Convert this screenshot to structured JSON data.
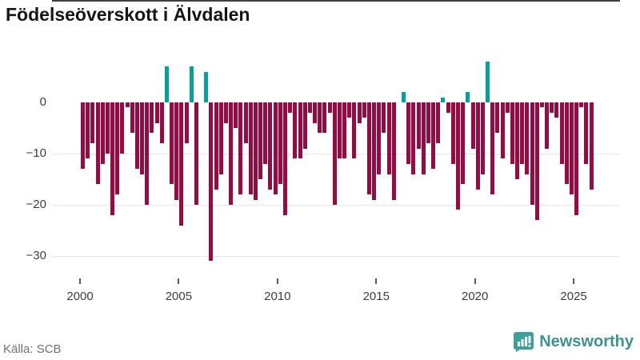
{
  "header": {
    "title": "Födelseöverskott i Älvdalen"
  },
  "footer": {
    "source": "Källa: SCB",
    "logo_text": "Newsworthy"
  },
  "colors": {
    "negative_bar": "#9a0a42",
    "positive_bar": "#00a29e",
    "axis_line": "#3f3f3f",
    "gridline": "#e7e7e7",
    "logo_teal": "#3aa19c",
    "logo_text": "#3e938e",
    "source_text": "#6e707c",
    "tick_text": "#3d3d45"
  },
  "y_axis": {
    "tick_labels": [
      "0",
      "−10",
      "−20",
      "−30"
    ],
    "tick_values": [
      0,
      -10,
      -20,
      -30
    ]
  },
  "x_axis": {
    "tick_labels": [
      "2000",
      "2005",
      "2010",
      "2015",
      "2020",
      "2025"
    ],
    "tick_years": [
      2000,
      2005,
      2010,
      2015,
      2020,
      2025
    ]
  },
  "chart_data": {
    "type": "bar",
    "title": "Födelseöverskott i Älvdalen",
    "x_start_year": 2000,
    "frequency": "quarterly",
    "x_range": [
      2000,
      2026
    ],
    "ylim": [
      -31,
      8
    ],
    "grid": "horizontal",
    "legend": "none",
    "series": [
      {
        "name": "Födelseöverskott",
        "values": [
          -13,
          -11,
          -8,
          -16,
          -12,
          -10,
          -22,
          -18,
          -10,
          -1,
          -6,
          -13,
          -14,
          -20,
          -6,
          -4,
          -8,
          7,
          -16,
          -19,
          -24,
          -8,
          7,
          -20,
          0,
          6,
          -31,
          -17,
          -14,
          -4,
          -20,
          -5,
          -18,
          -8,
          -18,
          -19,
          -15,
          -12,
          -17,
          -18,
          -16,
          -22,
          -2,
          -11,
          -11,
          -9,
          -2,
          -4,
          -6,
          -6,
          -2,
          -20,
          -11,
          -11,
          -3,
          -11,
          -4,
          -3,
          -18,
          -19,
          -14,
          -6,
          -14,
          -19,
          0,
          2,
          -12,
          -14,
          -9,
          -14,
          -8,
          -13,
          -8,
          1,
          -2,
          -12,
          -21,
          -16,
          2,
          -9,
          -17,
          -14,
          8,
          -18,
          -6,
          -11,
          -2,
          -12,
          -15,
          -12,
          -14,
          -20,
          -23,
          -1,
          -9,
          -2,
          -3,
          -12,
          -16,
          -18,
          -22,
          -1,
          -12,
          -17
        ]
      }
    ]
  }
}
